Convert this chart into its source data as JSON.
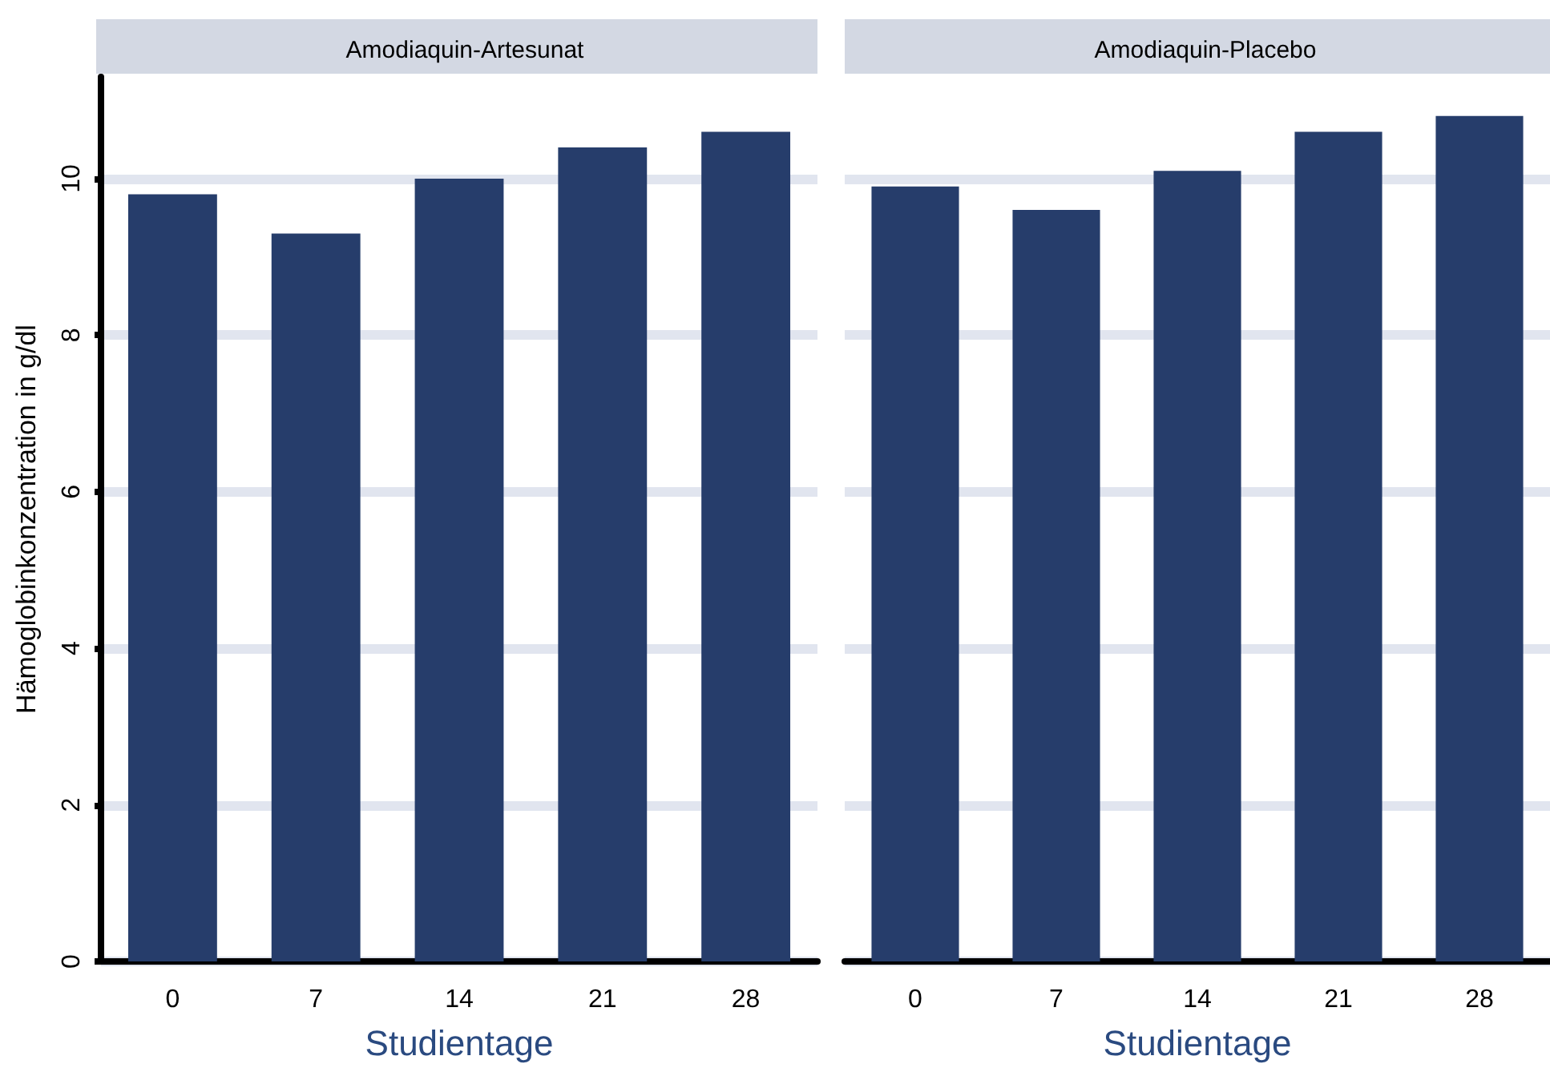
{
  "chart_data": [
    {
      "type": "bar",
      "title": "Amodiaquin-Artesunat",
      "xlabel": "Studientage",
      "ylabel": "Hämoglobinkonzentration in g/dl",
      "categories": [
        "0",
        "7",
        "14",
        "21",
        "28"
      ],
      "series": [
        {
          "color": "#263d6b",
          "values": [
            9.8,
            9.3,
            10.0,
            10.4,
            10.6
          ]
        }
      ],
      "ylim": [
        0,
        11.3
      ],
      "yticks": [
        0,
        2,
        4,
        6,
        8,
        10
      ],
      "grid": "y"
    },
    {
      "type": "bar",
      "title": "Amodiaquin-Placebo",
      "xlabel": "Studientage",
      "categories": [
        "0",
        "7",
        "14",
        "21",
        "28"
      ],
      "series": [
        {
          "color": "#263d6b",
          "values": [
            9.9,
            9.6,
            10.1,
            10.6,
            10.8
          ]
        }
      ],
      "yticks": [
        0,
        2,
        4,
        6,
        8,
        10
      ],
      "grid": "y",
      "tick_labels": "x"
    }
  ]
}
